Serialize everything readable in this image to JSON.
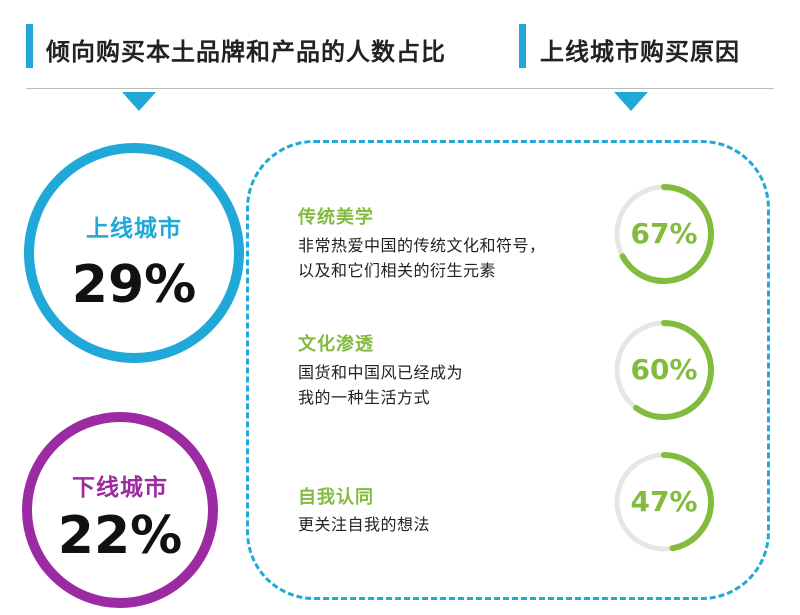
{
  "colors": {
    "accent_blue": "#20a8d8",
    "purple": "#9b2aa3",
    "green": "#82bb3e",
    "track_gray": "#e6e6e6"
  },
  "headers": {
    "left": "倾向购买本土品牌和产品的人数占比",
    "right": "上线城市购买原因"
  },
  "share": [
    {
      "label": "上线城市",
      "value": "29%",
      "color": "#20a8d8"
    },
    {
      "label": "下线城市",
      "value": "22%",
      "color": "#9b2aa3"
    }
  ],
  "reasons": [
    {
      "title": "传统美学",
      "desc_lines": [
        "非常热爱中国的传统文化和符号，",
        "以及和它们相关的衍生元素"
      ],
      "value_label": "67%",
      "value": 67
    },
    {
      "title": "文化渗透",
      "desc_lines": [
        "国货和中国风已经成为",
        "我的一种生活方式"
      ],
      "value_label": "60%",
      "value": 60
    },
    {
      "title": "自我认同",
      "desc_lines": [
        "更关注自我的想法"
      ],
      "value_label": "47%",
      "value": 47
    }
  ],
  "chart_data": [
    {
      "type": "bar",
      "title": "倾向购买本土品牌和产品的人数占比",
      "categories": [
        "上线城市",
        "下线城市"
      ],
      "values": [
        29,
        22
      ],
      "unit": "%"
    },
    {
      "type": "bar",
      "title": "上线城市购买原因",
      "categories": [
        "传统美学",
        "文化渗透",
        "自我认同"
      ],
      "values": [
        67,
        60,
        47
      ],
      "unit": "%"
    }
  ]
}
